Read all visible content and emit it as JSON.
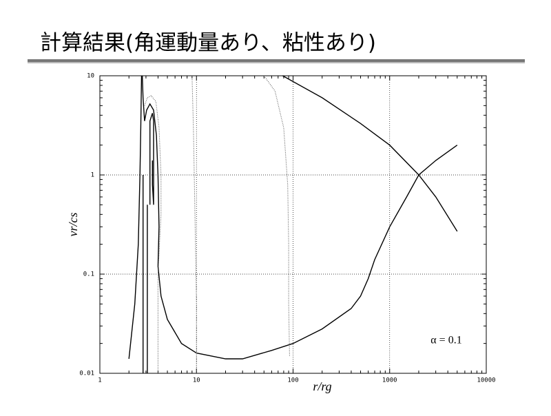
{
  "slide_title": "計算結果(角運動量あり、粘性あり)",
  "chart_data": {
    "type": "line",
    "xlog": true,
    "ylog": true,
    "grid": true,
    "xlabel": "r/rg",
    "ylabel": "vr/cs",
    "annotation": "α = 0.1",
    "xlim": [
      1,
      10000
    ],
    "ylim": [
      0.01,
      10
    ],
    "xticks": [
      1,
      10,
      100,
      1000,
      10000
    ],
    "yticks": [
      0.01,
      0.1,
      1,
      10
    ],
    "series": [
      {
        "color": "#000000",
        "dash": "solid",
        "x": [
          4.0,
          4.3,
          5,
          7,
          10,
          20,
          30,
          60,
          100,
          200,
          400,
          500,
          600,
          700,
          1000,
          1500,
          2000,
          3000,
          5000
        ],
        "values": [
          0.12,
          0.06,
          0.035,
          0.02,
          0.016,
          0.014,
          0.014,
          0.017,
          0.02,
          0.028,
          0.045,
          0.06,
          0.09,
          0.14,
          0.3,
          0.6,
          1.0,
          1.4,
          2.0
        ]
      },
      {
        "color": "#000000",
        "dash": "solid",
        "x": [
          78,
          200,
          500,
          1000,
          2000,
          3000,
          5000
        ],
        "values": [
          10,
          6,
          3.3,
          2,
          1,
          0.6,
          0.27
        ]
      },
      {
        "color": "#000000",
        "dash": "solid",
        "x": [
          2.0,
          2.3,
          2.5,
          2.6,
          2.65,
          2.7
        ],
        "values": [
          0.014,
          0.05,
          0.2,
          1,
          3,
          10
        ]
      },
      {
        "color": "#000000",
        "dash": "solid",
        "x": [
          2.75,
          2.8,
          2.9,
          3.05,
          3.3,
          3.6,
          3.85,
          4.0,
          4.1,
          4.0
        ],
        "values": [
          10,
          6,
          3.5,
          4.5,
          5.2,
          4.5,
          2.5,
          1,
          0.3,
          0.12
        ]
      },
      {
        "color": "#000000",
        "dash": "solid",
        "x": [
          2.8,
          2.8,
          null,
          3.1,
          3.1,
          null,
          3.3,
          3.3,
          3.5,
          3.6,
          3.6,
          3.5,
          3.5
        ],
        "values": [
          0.01,
          1,
          null,
          0.01,
          0.5,
          null,
          0.5,
          3.5,
          4.2,
          3.5,
          0.5,
          0.8,
          1.4
        ]
      },
      {
        "color": "#555555",
        "dash": "dotted",
        "x": [
          2.9,
          3.1,
          3.4,
          3.8,
          4.1,
          4.3,
          4.3,
          4.0,
          4.0
        ],
        "values": [
          5,
          6,
          6.3,
          5.5,
          3,
          1,
          0.4,
          0.1,
          0.01
        ]
      },
      {
        "color": "#555555",
        "dash": "dotted",
        "x": [
          9,
          9.3,
          9.6,
          10,
          10
        ],
        "values": [
          10,
          3,
          0.5,
          0.05,
          0.01
        ]
      },
      {
        "color": "#555555",
        "dash": "dotted",
        "x": [
          50,
          65,
          80,
          88,
          90,
          90,
          92
        ],
        "values": [
          10,
          7,
          3,
          0.8,
          0.2,
          0.05,
          0.015
        ]
      }
    ]
  }
}
